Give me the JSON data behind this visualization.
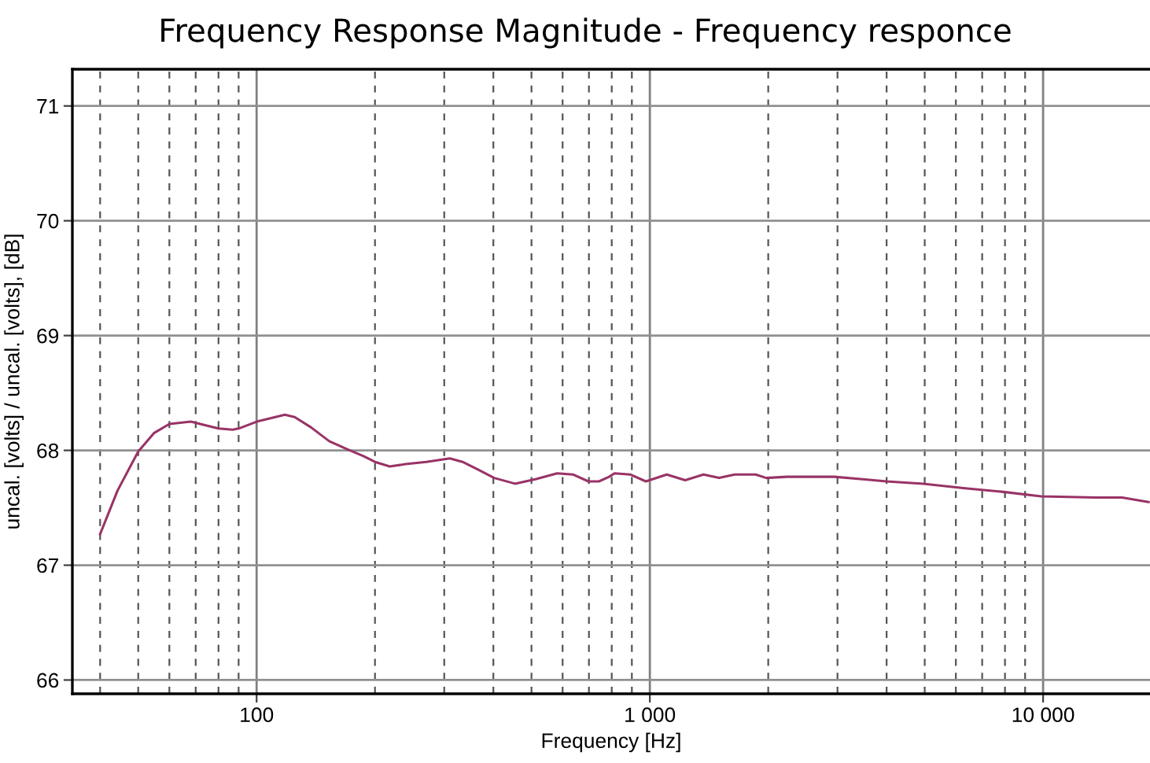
{
  "chart_data": {
    "type": "line",
    "title": "Frequency Response Magnitude - Frequency responce",
    "xlabel": "Frequency [Hz]",
    "ylabel": "uncal. [volts] / uncal. [volts], [dB]",
    "log": "x",
    "grid": true,
    "line_style": "solid",
    "marker": "none",
    "xlim": [
      34,
      18700
    ],
    "ylim": [
      65.88,
      71.32
    ],
    "xticks": [
      {
        "value": 40,
        "label": null
      },
      {
        "value": 50,
        "label": null
      },
      {
        "value": 60,
        "label": null
      },
      {
        "value": 70,
        "label": null
      },
      {
        "value": 80,
        "label": null
      },
      {
        "value": 90,
        "label": null
      },
      {
        "value": 100,
        "label": "100"
      },
      {
        "value": 200,
        "label": null
      },
      {
        "value": 300,
        "label": null
      },
      {
        "value": 400,
        "label": null
      },
      {
        "value": 500,
        "label": null
      },
      {
        "value": 600,
        "label": null
      },
      {
        "value": 700,
        "label": null
      },
      {
        "value": 800,
        "label": null
      },
      {
        "value": 900,
        "label": null
      },
      {
        "value": 1000,
        "label": "1 000"
      },
      {
        "value": 2000,
        "label": null
      },
      {
        "value": 3000,
        "label": null
      },
      {
        "value": 4000,
        "label": null
      },
      {
        "value": 5000,
        "label": null
      },
      {
        "value": 6000,
        "label": null
      },
      {
        "value": 7000,
        "label": null
      },
      {
        "value": 8000,
        "label": null
      },
      {
        "value": 9000,
        "label": null
      },
      {
        "value": 10000,
        "label": "10 000"
      }
    ],
    "yticks": [
      66,
      67,
      68,
      69,
      70,
      71
    ],
    "series": [
      {
        "color": "#993366",
        "x": [
          40,
          44.3,
          50,
          54.8,
          60,
          68,
          70,
          80,
          86.9,
          90,
          100,
          118,
          125,
          137.6,
          153,
          170,
          187,
          200,
          218,
          239,
          270,
          310,
          334,
          367,
          402,
          454,
          514,
          581,
          637,
          698,
          742,
          788,
          813,
          891,
          977,
          1104,
          1230,
          1369,
          1500,
          1644,
          1858,
          1977,
          2234,
          2944,
          3434,
          4000,
          4958,
          6334,
          7853,
          9886,
          13620,
          15880,
          18540
        ],
        "values": [
          67.27,
          67.65,
          67.99,
          68.15,
          68.23,
          68.25,
          68.24,
          68.19,
          68.18,
          68.19,
          68.25,
          68.31,
          68.29,
          68.2,
          68.08,
          68.01,
          67.95,
          67.9,
          67.86,
          67.88,
          67.9,
          67.93,
          67.9,
          67.83,
          67.76,
          67.71,
          67.75,
          67.8,
          67.79,
          67.73,
          67.73,
          67.77,
          67.8,
          67.79,
          67.73,
          67.79,
          67.74,
          67.79,
          67.76,
          67.79,
          67.79,
          67.76,
          67.77,
          67.77,
          67.75,
          67.73,
          67.71,
          67.67,
          67.64,
          67.6,
          67.59,
          67.59,
          67.55
        ]
      }
    ]
  }
}
